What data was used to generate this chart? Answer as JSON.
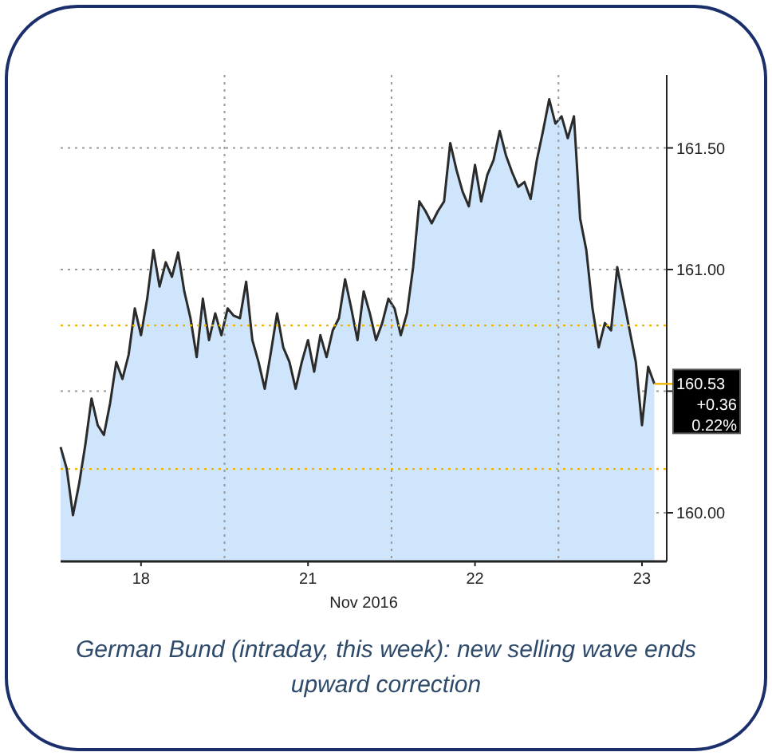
{
  "chart_data": {
    "type": "area",
    "title": "German Bund (intraday, this week): new selling wave ends upward correction",
    "xlabel": "Nov 2016",
    "categories": [
      null,
      null,
      null,
      null,
      null,
      null,
      null,
      null,
      null,
      null,
      null,
      null,
      null,
      "18",
      null,
      null,
      null,
      null,
      null,
      null,
      null,
      null,
      null,
      null,
      null,
      null,
      null,
      null,
      null,
      null,
      null,
      null,
      null,
      null,
      null,
      null,
      null,
      null,
      null,
      null,
      "21",
      null,
      null,
      null,
      null,
      null,
      null,
      null,
      null,
      null,
      null,
      null,
      null,
      null,
      null,
      null,
      null,
      null,
      null,
      null,
      null,
      null,
      null,
      null,
      null,
      null,
      null,
      "22",
      null,
      null,
      null,
      null,
      null,
      null,
      null,
      null,
      null,
      null,
      null,
      null,
      null,
      null,
      null,
      null,
      null,
      null,
      null,
      null,
      null,
      null,
      null,
      null,
      null,
      null,
      "23",
      null,
      null
    ],
    "series": [
      {
        "color": "#cfe5fb",
        "values": [
          160.27,
          160.18,
          159.99,
          160.12,
          160.28,
          160.47,
          160.36,
          160.32,
          160.45,
          160.62,
          160.55,
          160.65,
          160.84,
          160.73,
          160.88,
          161.08,
          160.93,
          161.03,
          160.97,
          161.07,
          160.91,
          160.8,
          160.64,
          160.88,
          160.71,
          160.82,
          160.73,
          160.84,
          160.81,
          160.8,
          160.95,
          160.71,
          160.62,
          160.51,
          160.66,
          160.82,
          160.68,
          160.62,
          160.51,
          160.62,
          160.71,
          160.58,
          160.73,
          160.64,
          160.75,
          160.8,
          160.96,
          160.84,
          160.71,
          160.91,
          160.82,
          160.71,
          160.78,
          160.88,
          160.84,
          160.73,
          160.82,
          161.01,
          161.28,
          161.24,
          161.19,
          161.24,
          161.28,
          161.52,
          161.41,
          161.32,
          161.26,
          161.43,
          161.28,
          161.39,
          161.45,
          161.57,
          161.47,
          161.4,
          161.34,
          161.36,
          161.29,
          161.45,
          161.57,
          161.7,
          161.6,
          161.63,
          161.54,
          161.63,
          161.21,
          161.08,
          160.84,
          160.68,
          160.78,
          160.75,
          161.01,
          160.88,
          160.75,
          160.62,
          160.36,
          160.6,
          160.53
        ]
      }
    ],
    "ylim": [
      159.8,
      161.8
    ],
    "yticks": [
      {
        "value": 160,
        "label": "160.00"
      },
      {
        "value": 160.5,
        "label": null
      },
      {
        "value": 161,
        "label": "161.00"
      },
      {
        "value": 161.5,
        "label": "161.50"
      }
    ],
    "grid": true,
    "ref_lines": [
      {
        "axis": "y",
        "value": 160.77,
        "color": "#f0b400",
        "line_style": "dotted"
      },
      {
        "axis": "y",
        "value": 160.18,
        "color": "#f0b400",
        "line_style": "dotted"
      }
    ],
    "annotations": [
      "160.53",
      "+0.36",
      "0.22%"
    ]
  }
}
